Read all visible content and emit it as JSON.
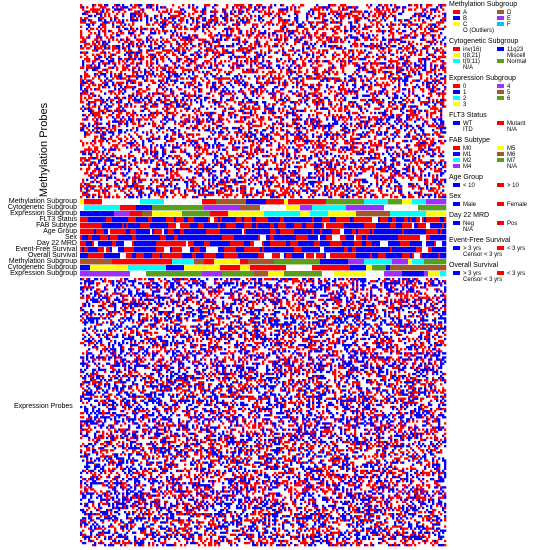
{
  "chart_data": {
    "type": "heatmap",
    "panel_labels": {
      "methylation": "Methylation Probes",
      "expression": "Expression Probes"
    },
    "value_colors": {
      "high": "#ff0000",
      "low": "#0000ff",
      "neutral": "#ffffff"
    },
    "annotation_tracks": [
      "Methylation Subgroup",
      "Cytogenetic Subgroup",
      "Expression Subgroup",
      "FLT3 Status",
      "FAB Subtype",
      "Age Group",
      "Sex",
      "Day 22 MRD",
      "Event-Free Survival",
      "Overall Survival",
      "Methylation Subgroup",
      "Cytogenetic Subgroup",
      "Expression Subgroup"
    ],
    "legend": [
      {
        "title": "Methylation Subgroup",
        "items": [
          {
            "label": "A",
            "color": "#ff0000"
          },
          {
            "label": "D",
            "color": "#a05a2c"
          },
          {
            "label": "B",
            "color": "#0000ff"
          },
          {
            "label": "E",
            "color": "#9b30ff"
          },
          {
            "label": "C",
            "color": "#ffff00"
          },
          {
            "label": "F",
            "color": "#00c8ff"
          },
          {
            "label": "O (Outliers)",
            "color": "#ffffff"
          }
        ]
      },
      {
        "title": "Cytogenetic Subgroup",
        "items": [
          {
            "label": "inv(16)",
            "color": "#ff0000"
          },
          {
            "label": "11q23",
            "color": "#0000ff"
          },
          {
            "label": "t(8;21)",
            "color": "#ffff00"
          },
          {
            "label": "Miscell",
            "color": "#ffffff"
          },
          {
            "label": "t(9;11)",
            "color": "#00ffff"
          },
          {
            "label": "Normal",
            "color": "#5a9e1e"
          },
          {
            "label": "N/A",
            "color": "#ffffff"
          }
        ]
      },
      {
        "title": "Expression Subgroup",
        "items": [
          {
            "label": "0",
            "color": "#ff0000"
          },
          {
            "label": "4",
            "color": "#9b30ff"
          },
          {
            "label": "1",
            "color": "#0000ff"
          },
          {
            "label": "5",
            "color": "#a05a2c"
          },
          {
            "label": "2",
            "color": "#00ffff"
          },
          {
            "label": "6",
            "color": "#5a9e1e"
          },
          {
            "label": "3",
            "color": "#ffff00"
          }
        ]
      },
      {
        "title": "FLT3 Status",
        "items": [
          {
            "label": "WT",
            "color": "#0000ff"
          },
          {
            "label": "Mutant",
            "color": "#ff0000"
          },
          {
            "label": "ITD",
            "color": "#ffffff"
          },
          {
            "label": "N/A",
            "color": "#ffffff"
          }
        ]
      },
      {
        "title": "FAB Subtype",
        "items": [
          {
            "label": "M0",
            "color": "#ff0000"
          },
          {
            "label": "M5",
            "color": "#ffff00"
          },
          {
            "label": "M1",
            "color": "#0000ff"
          },
          {
            "label": "M6",
            "color": "#a05a2c"
          },
          {
            "label": "M2",
            "color": "#00ffff"
          },
          {
            "label": "M7",
            "color": "#5a9e1e"
          },
          {
            "label": "M4",
            "color": "#9b30ff"
          },
          {
            "label": "N/A",
            "color": "#ffffff"
          }
        ]
      },
      {
        "title": "Age Group",
        "items": [
          {
            "label": "< 10",
            "color": "#0000ff"
          },
          {
            "label": "> 10",
            "color": "#ff0000"
          }
        ]
      },
      {
        "title": "Sex",
        "items": [
          {
            "label": "Male",
            "color": "#0000ff"
          },
          {
            "label": "Female",
            "color": "#ff0000"
          }
        ]
      },
      {
        "title": "Day 22 MRD",
        "items": [
          {
            "label": "Neg",
            "color": "#0000ff"
          },
          {
            "label": "Pos",
            "color": "#ff0000"
          },
          {
            "label": "N/A",
            "color": "#ffffff"
          }
        ]
      },
      {
        "title": "Event-Free Survival",
        "items": [
          {
            "label": "> 3 yrs",
            "color": "#0000ff"
          },
          {
            "label": "< 3 yrs",
            "color": "#ff0000"
          },
          {
            "label": "Censor < 3 yrs",
            "color": "#ffffff"
          }
        ]
      },
      {
        "title": "Overall Survival",
        "items": [
          {
            "label": "> 3 yrs",
            "color": "#0000ff"
          },
          {
            "label": "< 3 yrs",
            "color": "#ff0000"
          },
          {
            "label": "Censor < 3 yrs",
            "color": "#ffffff"
          }
        ]
      }
    ]
  }
}
